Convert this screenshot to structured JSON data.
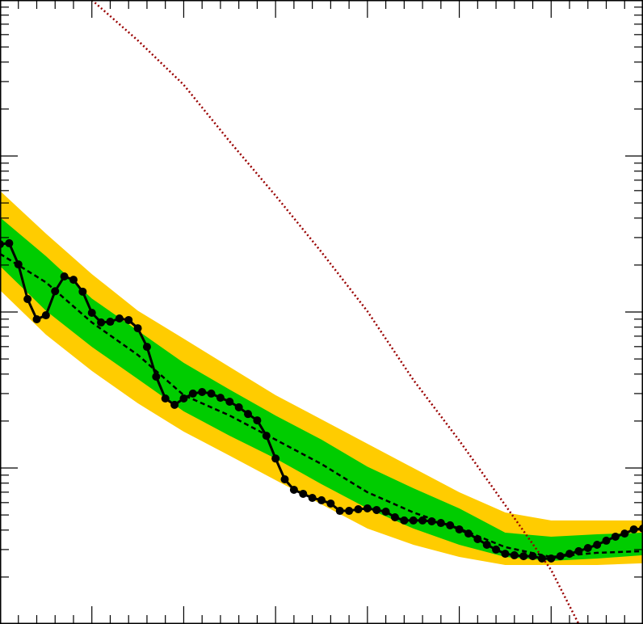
{
  "chart_data": {
    "type": "line",
    "log_y": true,
    "xlim": [
      0,
      700
    ],
    "ylim": [
      0.1,
      1000
    ],
    "xticks": [
      0,
      100,
      200,
      300,
      400,
      500,
      600,
      700
    ],
    "xminorticks": [
      20,
      40,
      60,
      80,
      120,
      140,
      160,
      180,
      220,
      240,
      260,
      280,
      320,
      340,
      360,
      380,
      420,
      440,
      460,
      480,
      520,
      540,
      560,
      580,
      620,
      640,
      660,
      680
    ],
    "yticks": [
      0.1,
      1,
      10,
      100,
      1000
    ],
    "yminorticks": [
      0.2,
      0.3,
      0.4,
      0.5,
      0.6,
      0.7,
      0.8,
      0.9,
      2,
      3,
      4,
      5,
      6,
      7,
      8,
      9,
      20,
      30,
      40,
      50,
      60,
      70,
      80,
      90,
      200,
      300,
      400,
      500,
      600,
      700,
      800,
      900
    ],
    "band_x": [
      0,
      50,
      100,
      150,
      200,
      250,
      300,
      350,
      400,
      450,
      500,
      550,
      600,
      650,
      700
    ],
    "bands": [
      {
        "color": "#ffcc00",
        "upper": [
          59.8,
          31.8,
          17.5,
          10.2,
          6.75,
          4.44,
          2.93,
          2.05,
          1.43,
          1.0,
          0.699,
          0.519,
          0.461,
          0.461,
          0.461
        ],
        "lower": [
          13.8,
          7.16,
          4.19,
          2.6,
          1.71,
          1.2,
          0.836,
          0.585,
          0.409,
          0.322,
          0.269,
          0.239,
          0.239,
          0.239,
          0.245
        ]
      },
      {
        "color": "#00cc00",
        "upper": [
          40.4,
          22.8,
          12.2,
          7.6,
          4.72,
          3.18,
          2.17,
          1.52,
          1.02,
          0.742,
          0.551,
          0.385,
          0.363,
          0.376,
          0.385
        ],
        "lower": [
          19.7,
          10.2,
          5.98,
          3.72,
          2.31,
          1.61,
          1.15,
          0.788,
          0.551,
          0.409,
          0.322,
          0.269,
          0.254,
          0.263,
          0.276
        ]
      }
    ],
    "series": [
      {
        "color": "#990000",
        "style": "dotted",
        "markers": false,
        "x": [
          100,
          150,
          200,
          250,
          300,
          350,
          400,
          450,
          500,
          550,
          600,
          630
        ],
        "values": [
          1000,
          551,
          286,
          124,
          55.7,
          24.2,
          10.1,
          3.67,
          1.5,
          0.578,
          0.222,
          0.1
        ]
      },
      {
        "color": "#000000",
        "style": "dashed",
        "markers": false,
        "x": [
          0,
          50,
          100,
          150,
          200,
          250,
          300,
          350,
          400,
          450,
          500,
          550,
          600,
          650,
          700
        ],
        "values": [
          23.6,
          15.5,
          8.57,
          5.31,
          2.93,
          2.17,
          1.52,
          1.06,
          0.699,
          0.519,
          0.409,
          0.311,
          0.269,
          0.286,
          0.293
        ]
      },
      {
        "color": "#000000",
        "style": "solid",
        "markers": true,
        "x": [
          0,
          10,
          20,
          30,
          40,
          50,
          60,
          70,
          80,
          90,
          100,
          110,
          120,
          130,
          140,
          150,
          160,
          170,
          180,
          190,
          200,
          210,
          220,
          230,
          240,
          250,
          260,
          270,
          280,
          290,
          300,
          310,
          320,
          330,
          340,
          350,
          360,
          370,
          380,
          390,
          400,
          410,
          420,
          430,
          440,
          450,
          460,
          470,
          480,
          490,
          500,
          510,
          520,
          530,
          540,
          550,
          560,
          570,
          580,
          590,
          600,
          610,
          620,
          630,
          640,
          650,
          660,
          670,
          680,
          690,
          700
        ],
        "values": [
          27.2,
          27.6,
          20.2,
          12.1,
          8.98,
          9.53,
          13.6,
          16.9,
          16.1,
          13.5,
          9.88,
          8.57,
          8.66,
          9.09,
          8.88,
          7.87,
          5.98,
          3.85,
          2.79,
          2.54,
          2.79,
          3.0,
          3.07,
          3.0,
          2.82,
          2.66,
          2.45,
          2.22,
          2.02,
          1.61,
          1.15,
          0.846,
          0.725,
          0.683,
          0.643,
          0.621,
          0.592,
          0.531,
          0.531,
          0.544,
          0.551,
          0.538,
          0.525,
          0.483,
          0.461,
          0.461,
          0.461,
          0.455,
          0.444,
          0.429,
          0.404,
          0.38,
          0.35,
          0.322,
          0.3,
          0.282,
          0.276,
          0.272,
          0.272,
          0.263,
          0.263,
          0.272,
          0.282,
          0.293,
          0.307,
          0.322,
          0.342,
          0.363,
          0.38,
          0.404,
          0.409
        ]
      }
    ]
  }
}
